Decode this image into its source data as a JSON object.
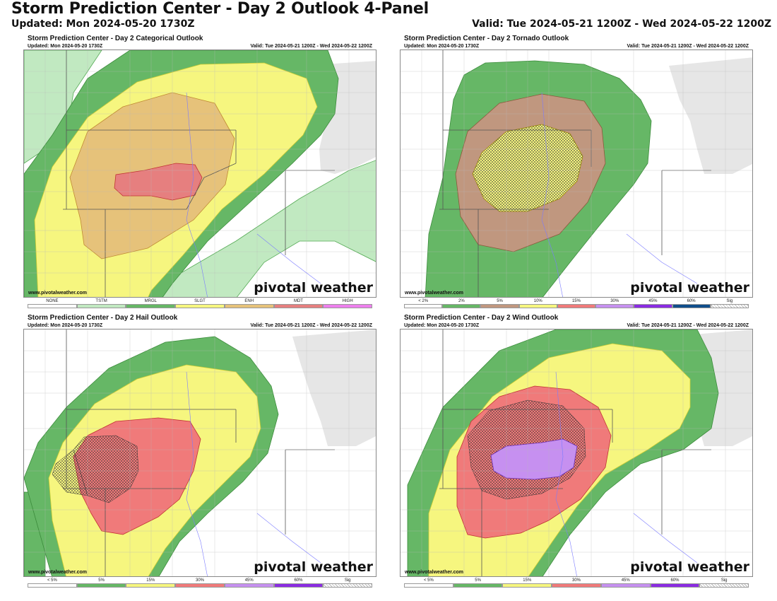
{
  "header": {
    "title": "Storm Prediction Center - Day 2 Outlook 4-Panel",
    "updated": "Updated: Mon 2024-05-20 1730Z",
    "valid": "Valid: Tue 2024-05-21 1200Z - Wed 2024-05-22 1200Z"
  },
  "panels": [
    {
      "title": "Storm Prediction Center - Day 2 Categorical Outlook",
      "updated": "Updated: Mon 2024-05-20 1730Z",
      "valid": "Valid: Tue 2024-05-21 1200Z - Wed 2024-05-22 1200Z",
      "credit": "www.pivotalweather.com",
      "brand": "pivotal weather",
      "legend": [
        {
          "label": "NONE",
          "color": "#ffffff"
        },
        {
          "label": "TSTM",
          "color": "#c1e9c1"
        },
        {
          "label": "MRGL",
          "color": "#66b766"
        },
        {
          "label": "SLGT",
          "color": "#f6f67f"
        },
        {
          "label": "ENH",
          "color": "#e6c27a"
        },
        {
          "label": "MDT",
          "color": "#e67f7f"
        },
        {
          "label": "HIGH",
          "color": "#ee7fee"
        }
      ]
    },
    {
      "title": "Storm Prediction Center - Day 2 Tornado Outlook",
      "updated": "Updated: Mon 2024-05-20 1730Z",
      "valid": "Valid: Tue 2024-05-21 1200Z - Wed 2024-05-22 1200Z",
      "credit": "www.pivotalweather.com",
      "brand": "pivotal weather",
      "legend": [
        {
          "label": "< 2%",
          "color": "#ffffff"
        },
        {
          "label": "2%",
          "color": "#66b766"
        },
        {
          "label": "5%",
          "color": "#c0977f"
        },
        {
          "label": "10%",
          "color": "#f6f67f"
        },
        {
          "label": "15%",
          "color": "#f07a7a"
        },
        {
          "label": "30%",
          "color": "#c690f0"
        },
        {
          "label": "45%",
          "color": "#8a2be2"
        },
        {
          "label": "60%",
          "color": "#104e8b"
        },
        {
          "label": "Sig",
          "color": "#dddddd"
        }
      ]
    },
    {
      "title": "Storm Prediction Center - Day 2 Hail Outlook",
      "updated": "Updated: Mon 2024-05-20 1730Z",
      "valid": "Valid: Tue 2024-05-21 1200Z - Wed 2024-05-22 1200Z",
      "credit": "www.pivotalweather.com",
      "brand": "pivotal weather",
      "legend": [
        {
          "label": "< 5%",
          "color": "#ffffff"
        },
        {
          "label": "5%",
          "color": "#66b766"
        },
        {
          "label": "15%",
          "color": "#f6f67f"
        },
        {
          "label": "30%",
          "color": "#f07a7a"
        },
        {
          "label": "45%",
          "color": "#c690f0"
        },
        {
          "label": "60%",
          "color": "#8a2be2"
        },
        {
          "label": "Sig",
          "color": "#dddddd"
        }
      ]
    },
    {
      "title": "Storm Prediction Center - Day 2 Wind Outlook",
      "updated": "Updated: Mon 2024-05-20 1730Z",
      "valid": "Valid: Tue 2024-05-21 1200Z - Wed 2024-05-22 1200Z",
      "credit": "www.pivotalweather.com",
      "brand": "pivotal weather",
      "legend": [
        {
          "label": "< 5%",
          "color": "#ffffff"
        },
        {
          "label": "5%",
          "color": "#66b766"
        },
        {
          "label": "15%",
          "color": "#f6f67f"
        },
        {
          "label": "30%",
          "color": "#f07a7a"
        },
        {
          "label": "45%",
          "color": "#c690f0"
        },
        {
          "label": "60%",
          "color": "#8a2be2"
        },
        {
          "label": "Sig",
          "color": "#dddddd"
        }
      ]
    }
  ]
}
